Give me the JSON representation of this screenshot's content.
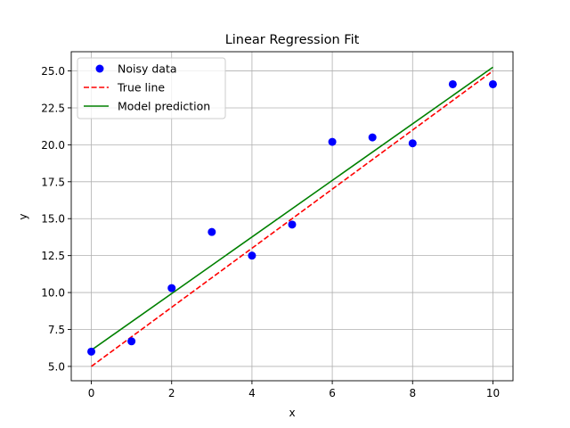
{
  "chart_data": {
    "type": "scatter",
    "title": "Linear Regression Fit",
    "xlabel": "x",
    "ylabel": "y",
    "xlim": [
      -0.5,
      10.5
    ],
    "ylim": [
      4.03,
      26.3
    ],
    "xticks": [
      0,
      2,
      4,
      6,
      8,
      10
    ],
    "xtick_labels": [
      "0",
      "2",
      "4",
      "6",
      "8",
      "10"
    ],
    "yticks": [
      5.0,
      7.5,
      10.0,
      12.5,
      15.0,
      17.5,
      20.0,
      22.5,
      25.0
    ],
    "ytick_labels": [
      "5.0",
      "7.5",
      "10.0",
      "12.5",
      "15.0",
      "17.5",
      "20.0",
      "22.5",
      "25.0"
    ],
    "grid": true,
    "legend_position": "top-left",
    "series": [
      {
        "name": "Noisy data",
        "type": "scatter",
        "color": "#0000ff",
        "x": [
          0,
          1,
          2,
          3,
          4,
          5,
          6,
          7,
          8,
          9,
          10
        ],
        "y": [
          6.0,
          6.7,
          10.3,
          14.1,
          12.5,
          14.6,
          20.2,
          20.5,
          20.1,
          24.1,
          24.1
        ]
      },
      {
        "name": "True line",
        "type": "line",
        "style": "dashed",
        "color": "#ff0000",
        "x": [
          0,
          10
        ],
        "y": [
          5.0,
          25.0
        ]
      },
      {
        "name": "Model prediction",
        "type": "line",
        "style": "solid",
        "color": "#008000",
        "x": [
          0,
          10
        ],
        "y": [
          6.1,
          25.25
        ]
      }
    ]
  }
}
